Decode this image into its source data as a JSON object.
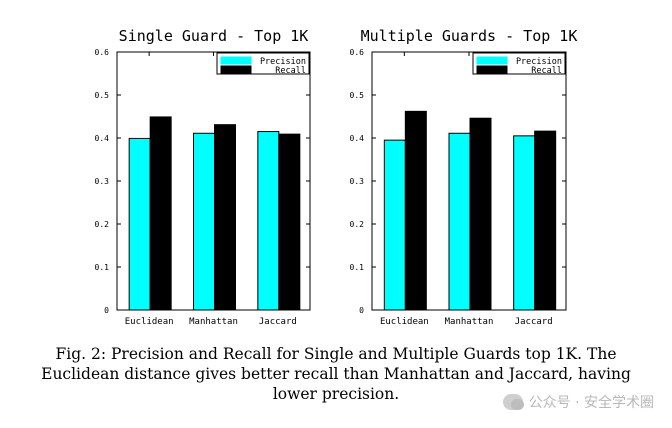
{
  "chart_data": [
    {
      "type": "bar",
      "title": "Single Guard - Top 1K",
      "categories": [
        "Euclidean",
        "Manhattan",
        "Jaccard"
      ],
      "series": [
        {
          "name": "Precision",
          "values": [
            0.399,
            0.411,
            0.415
          ]
        },
        {
          "name": "Recall",
          "values": [
            0.449,
            0.431,
            0.409
          ]
        }
      ],
      "ylim": [
        0,
        0.6
      ],
      "yticks": [
        "0",
        "0.1",
        "0.2",
        "0.3",
        "0.4",
        "0.5",
        "0.6"
      ],
      "legend": "top-right",
      "grid": false
    },
    {
      "type": "bar",
      "title": "Multiple Guards - Top 1K",
      "categories": [
        "Euclidean",
        "Manhattan",
        "Jaccard"
      ],
      "series": [
        {
          "name": "Precision",
          "values": [
            0.395,
            0.411,
            0.405
          ]
        },
        {
          "name": "Recall",
          "values": [
            0.462,
            0.446,
            0.416
          ]
        }
      ],
      "ylim": [
        0,
        0.6
      ],
      "yticks": [
        "0",
        "0.1",
        "0.2",
        "0.3",
        "0.4",
        "0.5",
        "0.6"
      ],
      "legend": "top-right",
      "grid": false
    }
  ],
  "colors": {
    "precision": "#00ffff",
    "recall": "#000000"
  },
  "caption": "Fig. 2: Precision and Recall for Single and Multiple Guards top 1K. The Euclidean distance gives better recall than Manhattan and Jaccard, having lower precision.",
  "watermark": {
    "text": "公众号 · 安全学术圈",
    "icon": "wechat-icon"
  }
}
